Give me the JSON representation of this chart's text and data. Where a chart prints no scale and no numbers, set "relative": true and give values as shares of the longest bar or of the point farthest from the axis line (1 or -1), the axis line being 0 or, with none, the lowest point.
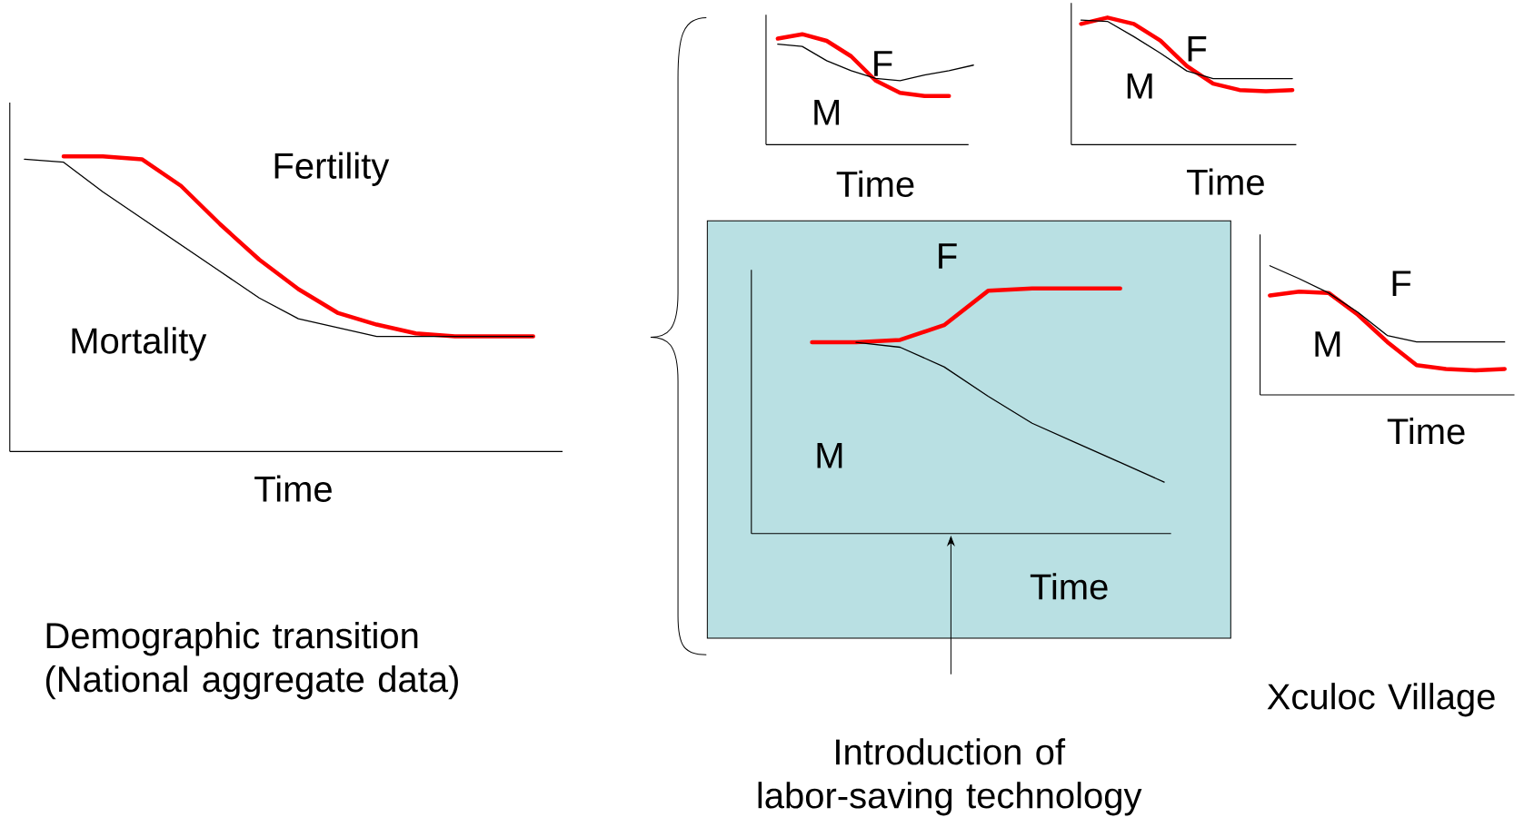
{
  "chart_data": [
    {
      "type": "line",
      "relative": true,
      "xlabel": "Time",
      "categories": [
        null,
        null,
        null,
        null,
        null,
        null,
        null,
        null,
        null,
        null,
        null,
        null,
        null,
        null
      ],
      "series": [
        {
          "name": "Fertility",
          "color": "#ff0000",
          "values": [
            null,
            1.0,
            1.0,
            0.99,
            0.9,
            0.77,
            0.65,
            0.55,
            0.47,
            0.43,
            0.4,
            0.39,
            0.39,
            0.39
          ]
        },
        {
          "name": "Mortality",
          "color": "#000000",
          "values": [
            0.99,
            0.98,
            0.88,
            0.79,
            0.7,
            0.61,
            0.52,
            0.45,
            0.42,
            0.39,
            0.39,
            0.39,
            0.39,
            0.39
          ]
        }
      ],
      "annotations": [
        "Demographic transition (National aggregate data)"
      ]
    },
    {
      "type": "line",
      "relative": true,
      "xlabel": "Time",
      "categories": [
        null,
        null,
        null,
        null,
        null,
        null,
        null,
        null,
        null
      ],
      "series": [
        {
          "name": "F",
          "color": "#ff0000",
          "values": [
            0.96,
            1.0,
            0.94,
            0.8,
            0.58,
            0.47,
            0.44,
            0.44,
            null
          ]
        },
        {
          "name": "M",
          "color": "#000000",
          "values": [
            0.91,
            0.89,
            0.76,
            0.67,
            0.6,
            0.58,
            0.63,
            0.67,
            0.72
          ]
        }
      ]
    },
    {
      "type": "line",
      "relative": true,
      "xlabel": "Time",
      "categories": [
        null,
        null,
        null,
        null,
        null,
        null,
        null,
        null,
        null
      ],
      "series": [
        {
          "name": "F",
          "color": "#ff0000",
          "values": [
            0.95,
            1.0,
            0.95,
            0.82,
            0.62,
            0.48,
            0.43,
            0.42,
            0.43
          ]
        },
        {
          "name": "M",
          "color": "#000000",
          "values": [
            0.98,
            0.97,
            0.85,
            0.72,
            0.58,
            0.52,
            0.52,
            0.52,
            0.52
          ]
        }
      ]
    },
    {
      "type": "line",
      "relative": true,
      "xlabel": "Time",
      "categories": [
        null,
        null,
        null,
        null,
        null,
        null,
        null,
        null,
        null
      ],
      "series": [
        {
          "name": "F",
          "color": "#ff0000",
          "values": [
            0.78,
            0.78,
            0.79,
            0.85,
            0.99,
            1.0,
            1.0,
            1.0,
            null
          ]
        },
        {
          "name": "M",
          "color": "#000000",
          "values": [
            null,
            0.78,
            0.76,
            0.68,
            0.56,
            0.45,
            0.37,
            0.29,
            0.21
          ]
        }
      ],
      "annotations": [
        "Introduction of labor-saving technology"
      ]
    },
    {
      "type": "line",
      "relative": true,
      "xlabel": "Time",
      "categories": [
        null,
        null,
        null,
        null,
        null,
        null,
        null,
        null,
        null
      ],
      "series": [
        {
          "name": "F",
          "color": "#ff0000",
          "values": [
            0.77,
            0.8,
            0.79,
            0.62,
            0.41,
            0.23,
            0.2,
            0.19,
            0.2
          ]
        },
        {
          "name": "M",
          "color": "#000000",
          "values": [
            1.0,
            0.9,
            0.79,
            0.64,
            0.46,
            0.41,
            0.41,
            0.41,
            0.41
          ]
        }
      ],
      "annotations": [
        "Xculoc Village"
      ]
    }
  ]
}
